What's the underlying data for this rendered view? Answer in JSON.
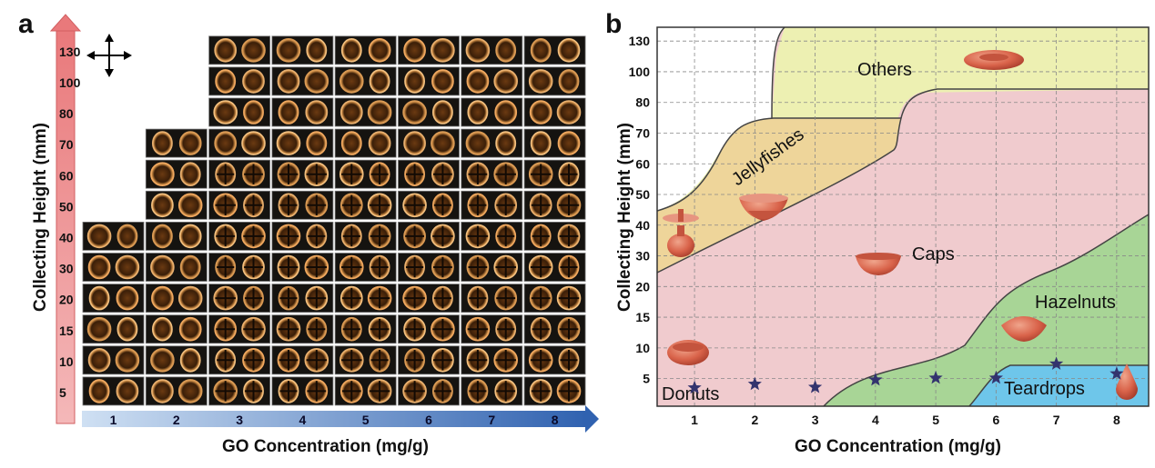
{
  "panels": {
    "a": {
      "letter": "a",
      "ylabel": "Collecting Height (mm)",
      "xlabel": "GO Concentration (mg/g)"
    },
    "b": {
      "letter": "b",
      "ylabel": "Collecting Height (mm)",
      "xlabel": "GO Concentration (mg/g)"
    }
  },
  "chart_data": [
    {
      "type": "table",
      "panel": "a",
      "xlabel": "GO Concentration (mg/g)",
      "ylabel": "Collecting Height (mm)",
      "x_ticks": [
        "1",
        "2",
        "3",
        "4",
        "5",
        "6",
        "7",
        "8"
      ],
      "y_ticks": [
        "5",
        "10",
        "15",
        "20",
        "30",
        "40",
        "50",
        "60",
        "70",
        "80",
        "100",
        "130"
      ],
      "column_row_counts": [
        6,
        9,
        12,
        12,
        12,
        12,
        12,
        12
      ],
      "cell_content": "pair of polarized optical micrographs of droplets",
      "axis_colors": {
        "y_arrow": "#e9797b",
        "x_arrow_start": "#cfe0f3",
        "x_arrow_end": "#3062b0"
      }
    },
    {
      "type": "scatter",
      "panel": "b",
      "xlabel": "GO Concentration (mg/g)",
      "ylabel": "Collecting Height (mm)",
      "x_ticks": [
        "1",
        "2",
        "3",
        "4",
        "5",
        "6",
        "7",
        "8"
      ],
      "y_ticks": [
        "5",
        "10",
        "15",
        "20",
        "30",
        "40",
        "50",
        "60",
        "70",
        "80",
        "100",
        "130"
      ],
      "grid": true,
      "regions": [
        {
          "label": "Others",
          "color": "#edf0b2"
        },
        {
          "label": "Jellyfishes",
          "color": "#eed59a"
        },
        {
          "label": "Caps",
          "color": "#f0cbce"
        },
        {
          "label": "Hazelnuts",
          "color": "#a8d596"
        },
        {
          "label": "Teardrops",
          "color": "#6ec6ea"
        },
        {
          "label": "Donuts",
          "color": "#f0cbce"
        }
      ],
      "points": [
        {
          "x": 1,
          "y": 3.5
        },
        {
          "x": 2,
          "y": 4.1
        },
        {
          "x": 3,
          "y": 3.6
        },
        {
          "x": 4,
          "y": 4.8
        },
        {
          "x": 5,
          "y": 5.1
        },
        {
          "x": 6,
          "y": 5.1
        },
        {
          "x": 7,
          "y": 7.4
        },
        {
          "x": 8,
          "y": 5.8
        }
      ],
      "marker": "star",
      "marker_color": "#33336e"
    }
  ]
}
